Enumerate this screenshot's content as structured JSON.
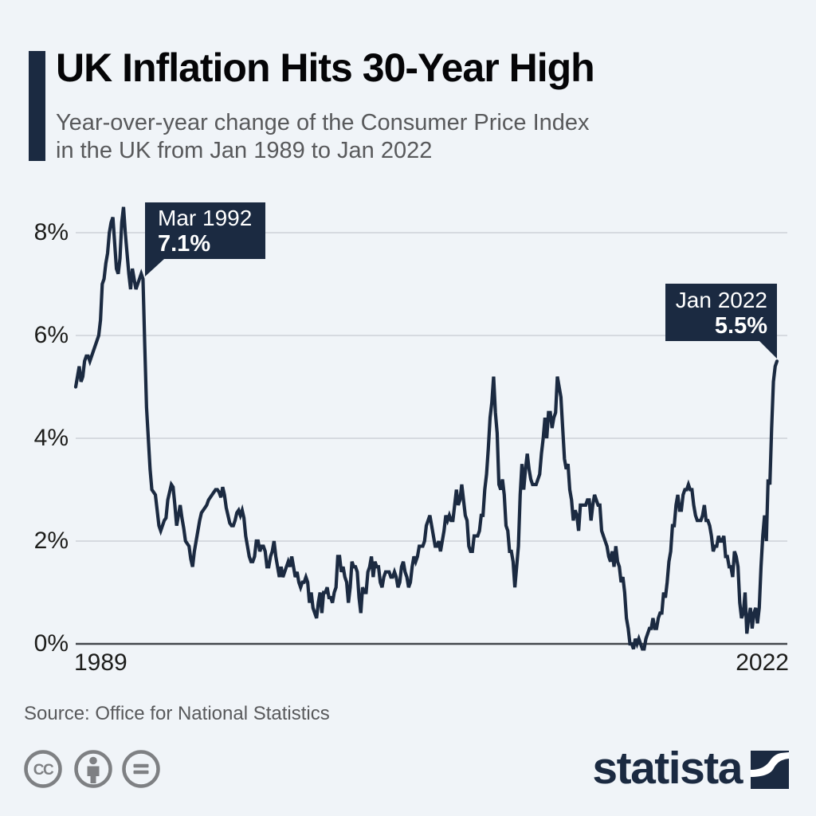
{
  "header": {
    "title": "UK Inflation Hits 30-Year High",
    "subtitle_line1": "Year-over-year change of the Consumer Price Index",
    "subtitle_line2": "in the UK from Jan 1989 to Jan 2022"
  },
  "chart_data": {
    "type": "line",
    "title": "UK Inflation Hits 30-Year High",
    "subtitle": "Year-over-year change of the Consumer Price Index in the UK from Jan 1989 to Jan 2022",
    "unit": "%",
    "x_range": [
      "Jan 1989",
      "Jan 2022"
    ],
    "ylim": [
      0,
      8.6
    ],
    "grid": true,
    "legend": "none",
    "y_ticks": [
      {
        "label": "0%",
        "value": 0
      },
      {
        "label": "2%",
        "value": 2
      },
      {
        "label": "4%",
        "value": 4
      },
      {
        "label": "6%",
        "value": 6
      },
      {
        "label": "8%",
        "value": 8
      }
    ],
    "x_ticks": [
      {
        "label": "1989"
      },
      {
        "label": "2022"
      }
    ],
    "annotations": [
      {
        "label": "Mar 1992",
        "value_label": "7.1%",
        "value": 7.1
      },
      {
        "label": "Jan 2022",
        "value_label": "5.5%",
        "value": 5.5
      }
    ],
    "series": [
      {
        "name": "Consumer Price Index year-over-year change",
        "frequency": "monthly",
        "start": "Jan 1989",
        "end": "Jan 2022",
        "values": [
          5.0,
          5.2,
          5.4,
          5.1,
          5.2,
          5.5,
          5.6,
          5.6,
          5.5,
          5.6,
          5.7,
          5.8,
          5.9,
          6.0,
          6.3,
          7.0,
          7.1,
          7.4,
          7.6,
          8.0,
          8.2,
          8.3,
          7.8,
          7.3,
          7.2,
          7.5,
          8.2,
          8.5,
          8.0,
          7.6,
          7.2,
          6.9,
          7.3,
          7.1,
          6.9,
          7.0,
          7.1,
          7.2,
          7.1,
          5.8,
          4.6,
          4.0,
          3.4,
          3.0,
          2.95,
          2.9,
          2.6,
          2.3,
          2.2,
          2.3,
          2.4,
          2.45,
          2.8,
          2.95,
          3.1,
          3.05,
          2.7,
          2.3,
          2.5,
          2.7,
          2.45,
          2.25,
          2.0,
          1.95,
          1.9,
          1.65,
          1.5,
          1.8,
          2.0,
          2.2,
          2.4,
          2.55,
          2.6,
          2.65,
          2.7,
          2.8,
          2.85,
          2.9,
          2.95,
          3.0,
          3.0,
          2.95,
          2.85,
          3.05,
          2.9,
          2.65,
          2.5,
          2.35,
          2.3,
          2.3,
          2.4,
          2.55,
          2.6,
          2.5,
          2.6,
          2.45,
          2.1,
          1.9,
          1.7,
          1.6,
          1.6,
          1.7,
          2.0,
          2.0,
          1.8,
          1.9,
          1.9,
          1.8,
          1.5,
          1.5,
          1.7,
          1.8,
          2.0,
          1.7,
          1.5,
          1.3,
          1.5,
          1.3,
          1.4,
          1.5,
          1.6,
          1.5,
          1.7,
          1.5,
          1.3,
          1.4,
          1.2,
          1.1,
          1.2,
          1.2,
          1.3,
          1.2,
          0.8,
          1.0,
          0.7,
          0.6,
          0.5,
          0.8,
          1.0,
          0.6,
          1.0,
          1.0,
          1.1,
          0.9,
          0.9,
          0.8,
          1.0,
          1.1,
          1.7,
          1.7,
          1.4,
          1.5,
          1.3,
          1.2,
          0.8,
          1.1,
          1.6,
          1.5,
          1.5,
          1.4,
          0.9,
          0.6,
          1.1,
          1.0,
          1.0,
          1.4,
          1.5,
          1.7,
          1.3,
          1.6,
          1.5,
          1.5,
          1.2,
          1.1,
          1.3,
          1.4,
          1.4,
          1.4,
          1.3,
          1.3,
          1.4,
          1.3,
          1.1,
          1.2,
          1.5,
          1.6,
          1.4,
          1.3,
          1.1,
          1.2,
          1.5,
          1.7,
          1.6,
          1.7,
          1.9,
          1.9,
          1.9,
          2.0,
          2.3,
          2.4,
          2.5,
          2.3,
          2.1,
          1.9,
          1.9,
          2.0,
          1.8,
          2.0,
          2.2,
          2.5,
          2.4,
          2.5,
          2.4,
          2.4,
          2.7,
          3.0,
          2.7,
          2.8,
          3.1,
          2.8,
          2.5,
          2.4,
          1.9,
          1.8,
          1.8,
          2.1,
          2.1,
          2.1,
          2.2,
          2.5,
          2.5,
          3.0,
          3.3,
          3.8,
          4.4,
          4.7,
          5.2,
          4.5,
          4.1,
          3.1,
          3.0,
          3.2,
          2.9,
          2.3,
          2.2,
          1.8,
          1.8,
          1.6,
          1.1,
          1.5,
          1.9,
          2.9,
          3.5,
          3.0,
          3.4,
          3.7,
          3.4,
          3.2,
          3.1,
          3.1,
          3.1,
          3.2,
          3.3,
          3.7,
          4.0,
          4.4,
          4.0,
          4.5,
          4.5,
          4.2,
          4.4,
          4.5,
          5.2,
          5.0,
          4.8,
          4.2,
          3.6,
          3.4,
          3.5,
          3.0,
          2.8,
          2.4,
          2.6,
          2.5,
          2.2,
          2.7,
          2.7,
          2.7,
          2.7,
          2.8,
          2.8,
          2.4,
          2.7,
          2.9,
          2.8,
          2.7,
          2.7,
          2.2,
          2.1,
          2.0,
          1.9,
          1.7,
          1.6,
          1.8,
          1.5,
          1.9,
          1.6,
          1.5,
          1.2,
          1.3,
          1.0,
          0.5,
          0.3,
          0.0,
          0.0,
          -0.1,
          0.1,
          0.0,
          0.1,
          0.0,
          -0.1,
          -0.1,
          0.1,
          0.2,
          0.3,
          0.3,
          0.5,
          0.3,
          0.3,
          0.5,
          0.6,
          0.6,
          1.0,
          0.9,
          1.2,
          1.6,
          1.8,
          2.3,
          2.3,
          2.7,
          2.9,
          2.6,
          2.6,
          2.9,
          3.0,
          3.0,
          3.1,
          3.0,
          3.0,
          2.7,
          2.5,
          2.4,
          2.4,
          2.4,
          2.5,
          2.7,
          2.4,
          2.4,
          2.3,
          2.1,
          1.8,
          1.9,
          1.9,
          2.1,
          2.0,
          2.0,
          2.1,
          1.7,
          1.7,
          1.5,
          1.5,
          1.3,
          1.8,
          1.7,
          1.5,
          0.8,
          0.5,
          0.6,
          1.0,
          0.2,
          0.5,
          0.7,
          0.3,
          0.6,
          0.7,
          0.4,
          0.7,
          1.5,
          2.1,
          2.5,
          2.0,
          3.2,
          3.1,
          4.2,
          5.1,
          5.4,
          5.5
        ]
      }
    ]
  },
  "footer": {
    "source": "Source: Office for National Statistics"
  },
  "branding": {
    "logo_text": "statista",
    "license_icons": [
      "cc-icon",
      "attribution-icon",
      "no-derivatives-icon"
    ]
  },
  "colors": {
    "background": "#f0f4f8",
    "navy": "#1b2a41",
    "line": "#1b2a41",
    "gridline": "#c6cbd2",
    "axis_line": "#43474c",
    "title_text": "#050507",
    "subtitle_text": "#58595b",
    "tick_text": "#1d1d1b",
    "callout_text": "#ffffff",
    "license_gray": "#7e8083"
  }
}
